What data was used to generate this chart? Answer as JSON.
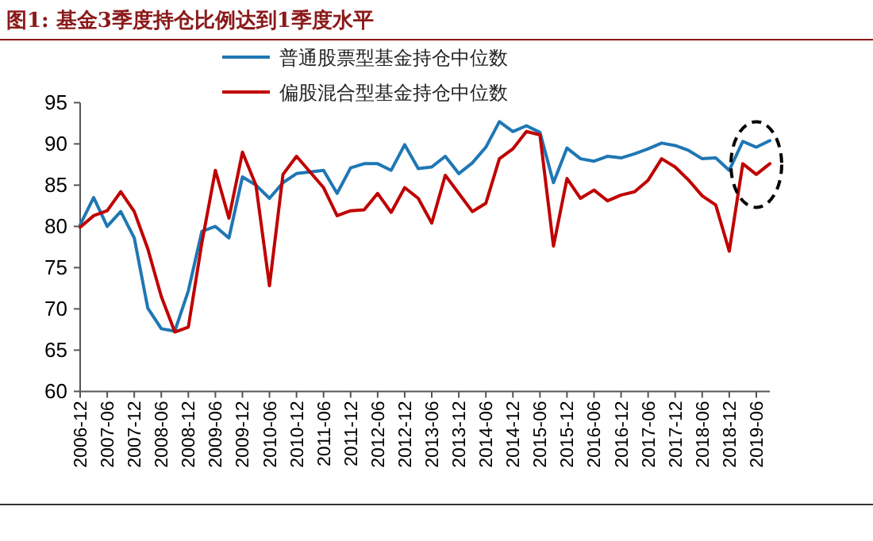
{
  "chart_data": {
    "type": "line",
    "title": "图1:  基金3季度持仓比例达到1季度水平",
    "categories": [
      "2006-12",
      null,
      "2007-06",
      null,
      "2007-12",
      null,
      "2008-06",
      null,
      "2008-12",
      null,
      "2009-06",
      null,
      "2009-12",
      null,
      "2010-06",
      null,
      "2010-12",
      null,
      "2011-06",
      null,
      "2011-12",
      null,
      "2012-06",
      null,
      "2012-12",
      null,
      "2013-06",
      null,
      "2013-12",
      null,
      "2014-06",
      null,
      "2014-12",
      null,
      "2015-06",
      null,
      "2015-12",
      null,
      "2016-06",
      null,
      "2016-12",
      null,
      "2017-06",
      null,
      "2017-12",
      null,
      "2018-06",
      null,
      "2018-12",
      null,
      "2019-06",
      null
    ],
    "series": [
      {
        "name": "普通股票型基金持仓中位数",
        "color": "#1f77b4",
        "values": [
          80.2,
          83.5,
          80,
          81.8,
          78.6,
          70.1,
          67.6,
          67.3,
          72.2,
          79.4,
          80,
          78.6,
          86,
          85,
          83.4,
          85.3,
          86.4,
          86.6,
          86.8,
          84,
          87.1,
          87.6,
          87.6,
          86.8,
          89.9,
          87,
          87.2,
          88.5,
          86.4,
          87.7,
          89.6,
          92.7,
          91.5,
          92.2,
          91.4,
          85.3,
          89.5,
          88.2,
          87.9,
          88.5,
          88.3,
          88.8,
          89.4,
          90.1,
          89.8,
          89.2,
          88.2,
          88.3,
          86.8,
          90.3,
          89.6,
          90.4
        ]
      },
      {
        "name": "偏股混合型基金持仓中位数",
        "color": "#c00000",
        "values": [
          79.9,
          81.3,
          81.9,
          84.2,
          81.8,
          77.3,
          71.5,
          67.2,
          67.8,
          78,
          86.8,
          81,
          89,
          85,
          72.8,
          86.3,
          88.5,
          86.6,
          84.7,
          81.3,
          81.9,
          82,
          84,
          81.7,
          84.7,
          83.4,
          80.4,
          86.2,
          84,
          81.8,
          82.8,
          88.2,
          89.4,
          91.5,
          91.1,
          77.6,
          85.8,
          83.4,
          84.4,
          83.1,
          83.8,
          84.2,
          85.6,
          88.2,
          87.2,
          85.6,
          83.7,
          82.6,
          77,
          87.6,
          86.3,
          87.6
        ]
      }
    ],
    "ylim": [
      60,
      95
    ],
    "yticks": [
      60,
      65,
      70,
      75,
      80,
      85,
      90,
      95
    ],
    "legend": "top",
    "grid": false,
    "marker": "none",
    "line_style": "solid"
  }
}
